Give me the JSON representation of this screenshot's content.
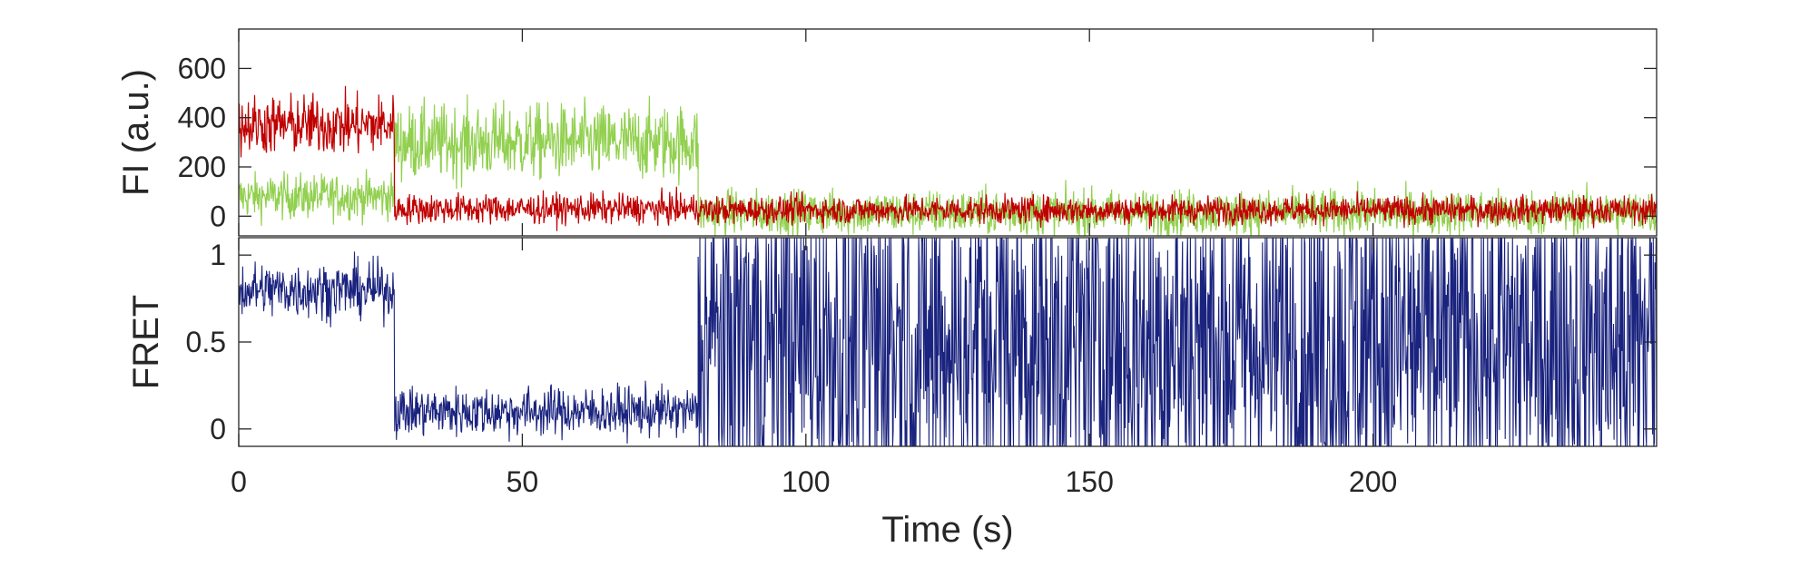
{
  "chart_data": [
    {
      "type": "line",
      "ylabel": "FI (a.u.)",
      "xlim": [
        0,
        250
      ],
      "ylim": [
        -80,
        760
      ],
      "yticks": [
        0,
        200,
        400,
        600
      ],
      "ytick_labels": [
        "0",
        "200",
        "400",
        "600"
      ],
      "grid": false,
      "series": [
        {
          "color": "#92d050",
          "segments": [
            {
              "x_start": 0,
              "x_end": 27.5,
              "level": 80,
              "noise": 45
            },
            {
              "x_start": 27.5,
              "x_end": 81,
              "level": 300,
              "noise": 75
            },
            {
              "x_start": 81,
              "x_end": 250,
              "level": 15,
              "noise": 45
            }
          ]
        },
        {
          "color": "#c00000",
          "segments": [
            {
              "x_start": 0,
              "x_end": 27.5,
              "level": 370,
              "noise": 60
            },
            {
              "x_start": 27.5,
              "x_end": 81,
              "level": 30,
              "noise": 30
            },
            {
              "x_start": 81,
              "x_end": 250,
              "level": 25,
              "noise": 28
            }
          ]
        }
      ]
    },
    {
      "type": "line",
      "ylabel": "FRET",
      "xlabel": "Time (s)",
      "xlim": [
        0,
        250
      ],
      "ylim": [
        -0.1,
        1.1
      ],
      "xticks": [
        0,
        50,
        100,
        150,
        200
      ],
      "xtick_labels": [
        "0",
        "50",
        "100",
        "150",
        "200"
      ],
      "yticks": [
        0,
        0.5,
        1
      ],
      "ytick_labels": [
        "0",
        "0.5",
        "1"
      ],
      "grid": false,
      "series": [
        {
          "color": "#1a237e",
          "segments": [
            {
              "x_start": 0,
              "x_end": 27.5,
              "level": 0.8,
              "noise": 0.08
            },
            {
              "x_start": 27.5,
              "x_end": 81,
              "level": 0.1,
              "noise": 0.07
            },
            {
              "x_start": 81,
              "x_end": 250,
              "level": 0.5,
              "noise": 0.6
            }
          ]
        }
      ]
    }
  ]
}
